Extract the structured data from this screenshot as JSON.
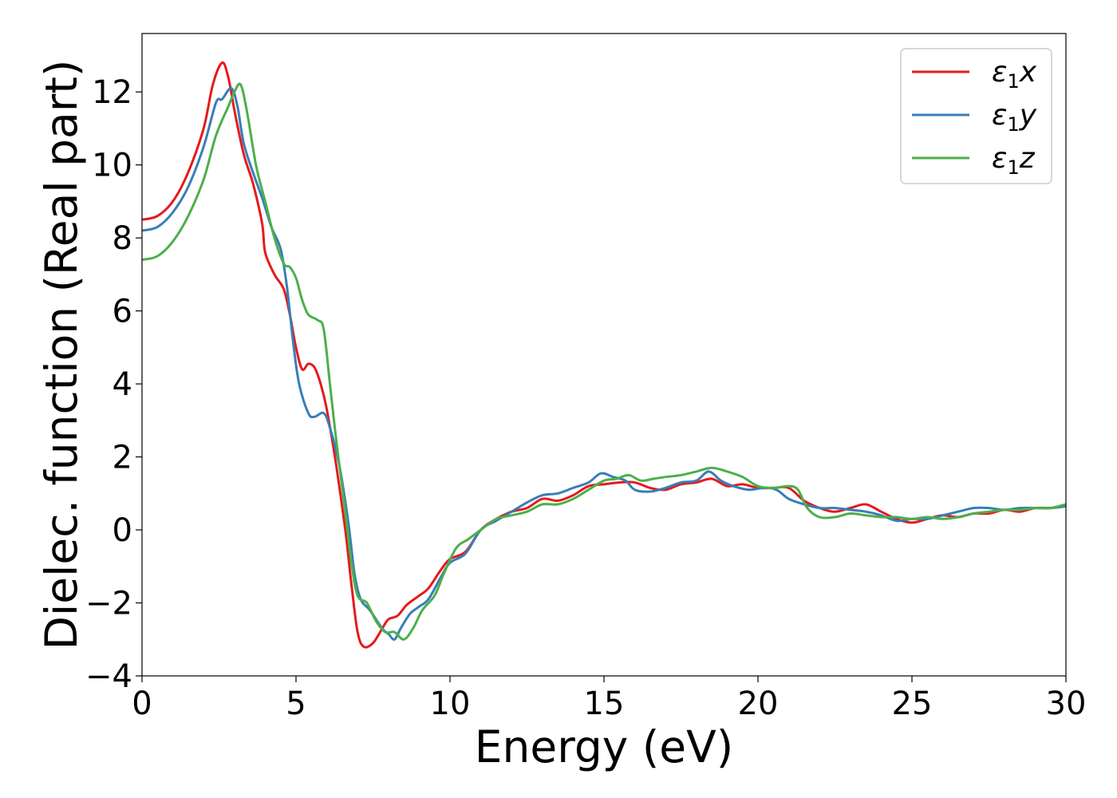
{
  "chart_data": {
    "type": "line",
    "title": "",
    "xlabel": "Energy (eV)",
    "ylabel": "Dielec. function (Real part)",
    "xlim": [
      0,
      30
    ],
    "ylim": [
      -4,
      13.6
    ],
    "xticks": [
      0,
      5,
      10,
      15,
      20,
      25,
      30
    ],
    "yticks": [
      -4,
      -2,
      0,
      2,
      4,
      6,
      8,
      10,
      12
    ],
    "xtick_labels": [
      "0",
      "5",
      "10",
      "15",
      "20",
      "25",
      "30"
    ],
    "ytick_labels": [
      "−4",
      "−2",
      "0",
      "2",
      "4",
      "6",
      "8",
      "10",
      "12"
    ],
    "grid": false,
    "legend_position": "top-right",
    "series": [
      {
        "name": "ε₁x",
        "legend_main": "ε",
        "legend_sub": "1",
        "legend_tail": "x",
        "color": "#e41a1c",
        "points": [
          [
            0,
            8.5
          ],
          [
            0.5,
            8.6
          ],
          [
            1.0,
            9.0
          ],
          [
            1.5,
            9.8
          ],
          [
            2.0,
            11.0
          ],
          [
            2.3,
            12.2
          ],
          [
            2.6,
            12.8
          ],
          [
            2.8,
            12.4
          ],
          [
            3.0,
            11.5
          ],
          [
            3.3,
            10.3
          ],
          [
            3.6,
            9.5
          ],
          [
            3.9,
            8.4
          ],
          [
            4.0,
            7.6
          ],
          [
            4.3,
            7.0
          ],
          [
            4.6,
            6.6
          ],
          [
            4.8,
            5.9
          ],
          [
            5.0,
            5.0
          ],
          [
            5.2,
            4.4
          ],
          [
            5.4,
            4.55
          ],
          [
            5.6,
            4.45
          ],
          [
            5.8,
            4.0
          ],
          [
            6.0,
            3.3
          ],
          [
            6.3,
            1.8
          ],
          [
            6.6,
            0.0
          ],
          [
            6.8,
            -1.5
          ],
          [
            7.0,
            -2.8
          ],
          [
            7.2,
            -3.2
          ],
          [
            7.5,
            -3.1
          ],
          [
            7.8,
            -2.7
          ],
          [
            8.0,
            -2.45
          ],
          [
            8.3,
            -2.35
          ],
          [
            8.6,
            -2.05
          ],
          [
            9.0,
            -1.8
          ],
          [
            9.3,
            -1.6
          ],
          [
            9.7,
            -1.1
          ],
          [
            10.0,
            -0.8
          ],
          [
            10.5,
            -0.6
          ],
          [
            11.0,
            0.0
          ],
          [
            11.5,
            0.3
          ],
          [
            12.0,
            0.5
          ],
          [
            12.5,
            0.6
          ],
          [
            13.0,
            0.85
          ],
          [
            13.5,
            0.8
          ],
          [
            14.0,
            0.95
          ],
          [
            14.5,
            1.2
          ],
          [
            15.0,
            1.25
          ],
          [
            15.5,
            1.3
          ],
          [
            16.0,
            1.3
          ],
          [
            16.5,
            1.15
          ],
          [
            17.0,
            1.1
          ],
          [
            17.5,
            1.25
          ],
          [
            18.0,
            1.3
          ],
          [
            18.5,
            1.4
          ],
          [
            19.0,
            1.2
          ],
          [
            19.5,
            1.25
          ],
          [
            20.0,
            1.15
          ],
          [
            20.5,
            1.15
          ],
          [
            21.0,
            1.15
          ],
          [
            21.5,
            0.8
          ],
          [
            22.0,
            0.6
          ],
          [
            22.5,
            0.5
          ],
          [
            23.0,
            0.6
          ],
          [
            23.5,
            0.7
          ],
          [
            24.0,
            0.5
          ],
          [
            24.5,
            0.3
          ],
          [
            25.0,
            0.2
          ],
          [
            25.5,
            0.3
          ],
          [
            26.0,
            0.4
          ],
          [
            26.5,
            0.35
          ],
          [
            27.0,
            0.45
          ],
          [
            27.5,
            0.45
          ],
          [
            28.0,
            0.55
          ],
          [
            28.5,
            0.5
          ],
          [
            29.0,
            0.6
          ],
          [
            29.5,
            0.6
          ],
          [
            30.0,
            0.65
          ]
        ]
      },
      {
        "name": "ε₁y",
        "legend_main": "ε",
        "legend_sub": "1",
        "legend_tail": "y",
        "color": "#377eb8",
        "points": [
          [
            0,
            8.2
          ],
          [
            0.5,
            8.3
          ],
          [
            1.0,
            8.7
          ],
          [
            1.5,
            9.4
          ],
          [
            2.0,
            10.5
          ],
          [
            2.4,
            11.7
          ],
          [
            2.6,
            11.8
          ],
          [
            2.9,
            12.1
          ],
          [
            3.1,
            11.6
          ],
          [
            3.3,
            10.6
          ],
          [
            3.6,
            9.8
          ],
          [
            3.9,
            9.1
          ],
          [
            4.2,
            8.3
          ],
          [
            4.5,
            7.7
          ],
          [
            4.7,
            6.7
          ],
          [
            4.9,
            5.2
          ],
          [
            5.1,
            4.0
          ],
          [
            5.4,
            3.2
          ],
          [
            5.6,
            3.1
          ],
          [
            5.9,
            3.2
          ],
          [
            6.1,
            2.8
          ],
          [
            6.4,
            1.8
          ],
          [
            6.7,
            0.2
          ],
          [
            6.9,
            -1.2
          ],
          [
            7.1,
            -1.9
          ],
          [
            7.4,
            -2.2
          ],
          [
            7.8,
            -2.7
          ],
          [
            8.0,
            -2.85
          ],
          [
            8.2,
            -3.0
          ],
          [
            8.4,
            -2.7
          ],
          [
            8.7,
            -2.3
          ],
          [
            9.0,
            -2.1
          ],
          [
            9.3,
            -1.9
          ],
          [
            9.7,
            -1.3
          ],
          [
            10.0,
            -0.9
          ],
          [
            10.5,
            -0.65
          ],
          [
            11.0,
            0.0
          ],
          [
            11.5,
            0.25
          ],
          [
            12.0,
            0.5
          ],
          [
            12.5,
            0.75
          ],
          [
            13.0,
            0.95
          ],
          [
            13.5,
            1.0
          ],
          [
            14.0,
            1.15
          ],
          [
            14.5,
            1.3
          ],
          [
            14.9,
            1.55
          ],
          [
            15.3,
            1.45
          ],
          [
            15.7,
            1.35
          ],
          [
            16.0,
            1.1
          ],
          [
            16.5,
            1.05
          ],
          [
            17.0,
            1.15
          ],
          [
            17.5,
            1.3
          ],
          [
            18.0,
            1.35
          ],
          [
            18.4,
            1.6
          ],
          [
            18.8,
            1.35
          ],
          [
            19.2,
            1.2
          ],
          [
            19.7,
            1.1
          ],
          [
            20.2,
            1.15
          ],
          [
            20.6,
            1.1
          ],
          [
            21.0,
            0.85
          ],
          [
            21.5,
            0.7
          ],
          [
            22.0,
            0.6
          ],
          [
            22.5,
            0.6
          ],
          [
            23.0,
            0.55
          ],
          [
            23.5,
            0.5
          ],
          [
            24.0,
            0.4
          ],
          [
            24.5,
            0.25
          ],
          [
            25.0,
            0.3
          ],
          [
            25.5,
            0.3
          ],
          [
            26.0,
            0.4
          ],
          [
            26.5,
            0.5
          ],
          [
            27.0,
            0.6
          ],
          [
            27.5,
            0.6
          ],
          [
            28.0,
            0.55
          ],
          [
            28.5,
            0.6
          ],
          [
            29.0,
            0.6
          ],
          [
            29.5,
            0.6
          ],
          [
            30.0,
            0.65
          ]
        ]
      },
      {
        "name": "ε₁z",
        "legend_main": "ε",
        "legend_sub": "1",
        "legend_tail": "z",
        "color": "#4daf4a",
        "points": [
          [
            0,
            7.4
          ],
          [
            0.5,
            7.5
          ],
          [
            1.0,
            7.9
          ],
          [
            1.5,
            8.6
          ],
          [
            2.0,
            9.6
          ],
          [
            2.4,
            10.8
          ],
          [
            2.8,
            11.6
          ],
          [
            3.0,
            12.0
          ],
          [
            3.2,
            12.2
          ],
          [
            3.4,
            11.5
          ],
          [
            3.7,
            10.0
          ],
          [
            4.0,
            9.0
          ],
          [
            4.3,
            8.0
          ],
          [
            4.6,
            7.3
          ],
          [
            4.8,
            7.2
          ],
          [
            5.0,
            6.9
          ],
          [
            5.2,
            6.3
          ],
          [
            5.4,
            5.9
          ],
          [
            5.7,
            5.75
          ],
          [
            5.9,
            5.5
          ],
          [
            6.1,
            4.0
          ],
          [
            6.3,
            2.5
          ],
          [
            6.6,
            0.5
          ],
          [
            6.8,
            -0.9
          ],
          [
            7.0,
            -1.8
          ],
          [
            7.3,
            -2.0
          ],
          [
            7.6,
            -2.5
          ],
          [
            7.9,
            -2.8
          ],
          [
            8.2,
            -2.8
          ],
          [
            8.5,
            -3.0
          ],
          [
            8.8,
            -2.7
          ],
          [
            9.1,
            -2.2
          ],
          [
            9.5,
            -1.8
          ],
          [
            9.8,
            -1.2
          ],
          [
            10.2,
            -0.5
          ],
          [
            10.6,
            -0.25
          ],
          [
            11.0,
            0.0
          ],
          [
            11.5,
            0.3
          ],
          [
            12.0,
            0.4
          ],
          [
            12.5,
            0.5
          ],
          [
            13.0,
            0.7
          ],
          [
            13.5,
            0.7
          ],
          [
            14.0,
            0.85
          ],
          [
            14.5,
            1.1
          ],
          [
            15.0,
            1.35
          ],
          [
            15.4,
            1.4
          ],
          [
            15.8,
            1.5
          ],
          [
            16.2,
            1.35
          ],
          [
            16.6,
            1.4
          ],
          [
            17.0,
            1.45
          ],
          [
            17.5,
            1.5
          ],
          [
            18.0,
            1.6
          ],
          [
            18.5,
            1.7
          ],
          [
            19.0,
            1.6
          ],
          [
            19.5,
            1.45
          ],
          [
            20.0,
            1.2
          ],
          [
            20.5,
            1.15
          ],
          [
            21.0,
            1.2
          ],
          [
            21.3,
            1.1
          ],
          [
            21.6,
            0.6
          ],
          [
            22.0,
            0.35
          ],
          [
            22.5,
            0.35
          ],
          [
            23.0,
            0.45
          ],
          [
            23.5,
            0.4
          ],
          [
            24.0,
            0.35
          ],
          [
            24.5,
            0.35
          ],
          [
            25.0,
            0.3
          ],
          [
            25.5,
            0.35
          ],
          [
            26.0,
            0.3
          ],
          [
            26.5,
            0.35
          ],
          [
            27.0,
            0.45
          ],
          [
            27.5,
            0.5
          ],
          [
            28.0,
            0.55
          ],
          [
            28.5,
            0.55
          ],
          [
            29.0,
            0.6
          ],
          [
            29.5,
            0.6
          ],
          [
            30.0,
            0.7
          ]
        ]
      }
    ]
  }
}
